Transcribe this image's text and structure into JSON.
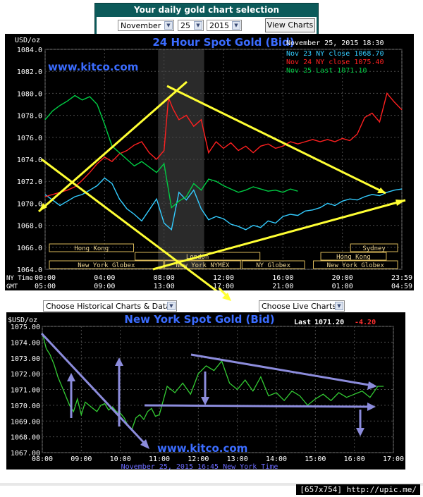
{
  "selector": {
    "title": "Your daily gold chart selection",
    "month": "November",
    "day": "25",
    "year": "2015",
    "button": "View Charts"
  },
  "chart_data": [
    {
      "type": "line",
      "title": "24 Hour Spot Gold (Bid)",
      "watermark": "www.kitco.com",
      "ylabel": "USD/oz",
      "ylim": [
        1064,
        1084
      ],
      "yticks": [
        "1084.0",
        "1082.0",
        "1080.0",
        "1078.0",
        "1076.0",
        "1074.0",
        "1072.0",
        "1070.0",
        "1068.0",
        "1066.0",
        "1064.0"
      ],
      "timestamp": "November 25, 2015 18:30",
      "x_rows": [
        {
          "label": "NY Time",
          "ticks": [
            "00:00",
            "04:00",
            "08:00",
            "12:00",
            "16:00",
            "20:00",
            "23:59"
          ]
        },
        {
          "label": "GMT",
          "ticks": [
            "05:00",
            "09:00",
            "13:00",
            "17:00",
            "21:00",
            "01:00",
            "04:59"
          ]
        }
      ],
      "market_sessions": [
        "Hong Kong",
        "London",
        "New York Globex",
        "New York NYMEX",
        "NY Globex",
        "Sydney",
        "Hong Kong",
        "New York Globex"
      ],
      "legend_position": "top-right",
      "series": [
        {
          "name": "Nov 23 NY close 1068.70",
          "color": "#33ccff",
          "x": [
            0,
            1,
            1.5,
            2,
            2.5,
            3,
            3.5,
            4,
            4.5,
            5,
            5.5,
            6,
            6.5,
            7,
            7.5,
            8,
            8.5,
            9,
            9.5,
            10,
            10.5,
            11,
            11.5,
            12,
            12.5,
            13,
            13.5,
            14,
            14.5,
            15,
            15.5,
            16,
            16.5,
            17,
            17.5,
            18,
            18.5,
            19,
            19.5,
            20,
            20.5,
            21,
            21.5,
            22,
            22.5,
            23,
            23.5,
            24
          ],
          "y": [
            1070.8,
            1069.8,
            1070.2,
            1070.6,
            1070.8,
            1071.2,
            1071.6,
            1072.3,
            1071.8,
            1070.4,
            1069.5,
            1069.0,
            1068.4,
            1069.4,
            1070.4,
            1068.2,
            1067.6,
            1071.0,
            1070.3,
            1071.2,
            1069.5,
            1068.5,
            1068.8,
            1068.6,
            1068.1,
            1067.9,
            1067.6,
            1068.0,
            1067.8,
            1068.4,
            1068.2,
            1068.8,
            1069.0,
            1068.9,
            1069.3,
            1069.4,
            1069.6,
            1070.0,
            1069.8,
            1070.2,
            1070.4,
            1070.3,
            1070.6,
            1070.8,
            1070.7,
            1071.0,
            1071.2,
            1071.3
          ]
        },
        {
          "name": "Nov 24 NY close 1075.40",
          "color": "#ff2020",
          "x": [
            0,
            1,
            1.5,
            2,
            2.5,
            3,
            3.5,
            4,
            4.5,
            5,
            5.5,
            6,
            6.5,
            7,
            7.5,
            8,
            8.3,
            8.6,
            9,
            9.5,
            10,
            10.5,
            11,
            11.5,
            12,
            12.5,
            13,
            13.5,
            14,
            14.5,
            15,
            15.5,
            16,
            16.5,
            17,
            17.5,
            18,
            18.5,
            19,
            19.5,
            20,
            20.5,
            21,
            21.5,
            22,
            22.5,
            23,
            23.5,
            24
          ],
          "y": [
            1070.6,
            1071.0,
            1071.2,
            1071.5,
            1072.1,
            1072.8,
            1073.6,
            1074.2,
            1073.8,
            1074.5,
            1074.8,
            1075.3,
            1075.6,
            1074.6,
            1074.0,
            1074.8,
            1079.6,
            1078.6,
            1077.6,
            1078.0,
            1077.0,
            1077.6,
            1074.6,
            1075.6,
            1075.0,
            1075.5,
            1074.8,
            1075.2,
            1074.6,
            1075.2,
            1075.4,
            1075.0,
            1075.2,
            1075.6,
            1075.4,
            1075.6,
            1075.8,
            1075.6,
            1075.8,
            1075.6,
            1075.9,
            1075.7,
            1076.3,
            1077.8,
            1078.2,
            1077.4,
            1080.0,
            1079.2,
            1078.5
          ]
        },
        {
          "name": "Nov 25 Last 1071.10",
          "color": "#00cc44",
          "x": [
            0,
            0.5,
            1,
            1.5,
            2,
            2.5,
            3,
            3.5,
            4,
            4.5,
            5,
            5.5,
            6,
            6.5,
            7,
            7.5,
            8,
            8.5,
            9,
            9.5,
            10,
            10.5,
            11,
            11.5,
            12,
            12.5,
            13,
            13.5,
            14,
            14.5,
            15,
            15.5,
            16,
            16.5,
            17
          ],
          "y": [
            1077.6,
            1078.4,
            1078.9,
            1079.3,
            1079.8,
            1079.4,
            1079.7,
            1079.0,
            1077.2,
            1075.2,
            1074.6,
            1074.0,
            1073.4,
            1073.8,
            1073.3,
            1072.8,
            1073.6,
            1069.6,
            1070.2,
            1070.6,
            1071.8,
            1071.2,
            1072.2,
            1072.0,
            1071.6,
            1071.3,
            1071.0,
            1071.2,
            1071.5,
            1071.3,
            1071.1,
            1071.2,
            1071.0,
            1071.3,
            1071.1
          ]
        }
      ]
    },
    {
      "type": "line",
      "title": "New York Spot Gold (Bid)",
      "watermark": "www.kitco.com",
      "ylabel": "$USD/oz",
      "ylim": [
        1067,
        1075
      ],
      "yticks": [
        "1075.00",
        "1074.00",
        "1073.00",
        "1072.00",
        "1071.00",
        "1070.00",
        "1069.00",
        "1068.00",
        "1067.00"
      ],
      "xticks": [
        "08:00",
        "09:00",
        "10:00",
        "11:00",
        "12:00",
        "13:00",
        "14:00",
        "15:00",
        "16:00",
        "17:00"
      ],
      "xlabel": "November 25, 2015 16:45 New York Time",
      "last_label": "Last",
      "last_value": "1071.20",
      "change": "-4.20",
      "series": [
        {
          "name": "",
          "color": "#33cc33",
          "x": [
            8.0,
            8.1,
            8.2,
            8.3,
            8.4,
            8.5,
            8.6,
            8.7,
            8.8,
            8.9,
            9.0,
            9.1,
            9.2,
            9.3,
            9.4,
            9.5,
            9.6,
            9.7,
            9.8,
            9.9,
            10.0,
            10.1,
            10.2,
            10.3,
            10.4,
            10.5,
            10.6,
            10.7,
            10.8,
            10.9,
            11.0,
            11.2,
            11.4,
            11.6,
            11.8,
            12.0,
            12.2,
            12.4,
            12.6,
            12.8,
            13.0,
            13.2,
            13.4,
            13.6,
            13.8,
            14.0,
            14.2,
            14.4,
            14.6,
            14.8,
            15.0,
            15.2,
            15.4,
            15.6,
            15.8,
            16.0,
            16.2,
            16.4,
            16.6,
            16.75
          ],
          "y": [
            1074.6,
            1073.6,
            1073.2,
            1072.6,
            1071.8,
            1071.2,
            1070.6,
            1070.0,
            1069.6,
            1070.4,
            1069.4,
            1070.2,
            1070.0,
            1069.8,
            1069.6,
            1070.0,
            1070.1,
            1069.7,
            1069.9,
            1069.6,
            1069.5,
            1069.2,
            1068.7,
            1068.5,
            1069.2,
            1069.4,
            1069.1,
            1069.6,
            1069.8,
            1069.3,
            1069.4,
            1071.2,
            1070.8,
            1071.4,
            1070.7,
            1072.0,
            1072.5,
            1072.2,
            1072.8,
            1071.4,
            1071.0,
            1071.6,
            1070.9,
            1071.8,
            1070.6,
            1070.8,
            1070.3,
            1070.9,
            1070.6,
            1070.0,
            1070.4,
            1070.7,
            1070.3,
            1070.8,
            1070.5,
            1070.7,
            1070.9,
            1070.5,
            1071.2,
            1071.2
          ]
        }
      ]
    }
  ],
  "dropdowns": {
    "historical": "Choose Historical Charts & Data",
    "live": "Choose Live Charts"
  },
  "footer": {
    "signature": "[657x754] http://upic.me/"
  },
  "colors": {
    "panel_teal": "#0c5a5a",
    "annotation_yellow": "#ffff33",
    "annotation_lavender": "#8c8cdc",
    "title_blue": "#3b6cff"
  }
}
